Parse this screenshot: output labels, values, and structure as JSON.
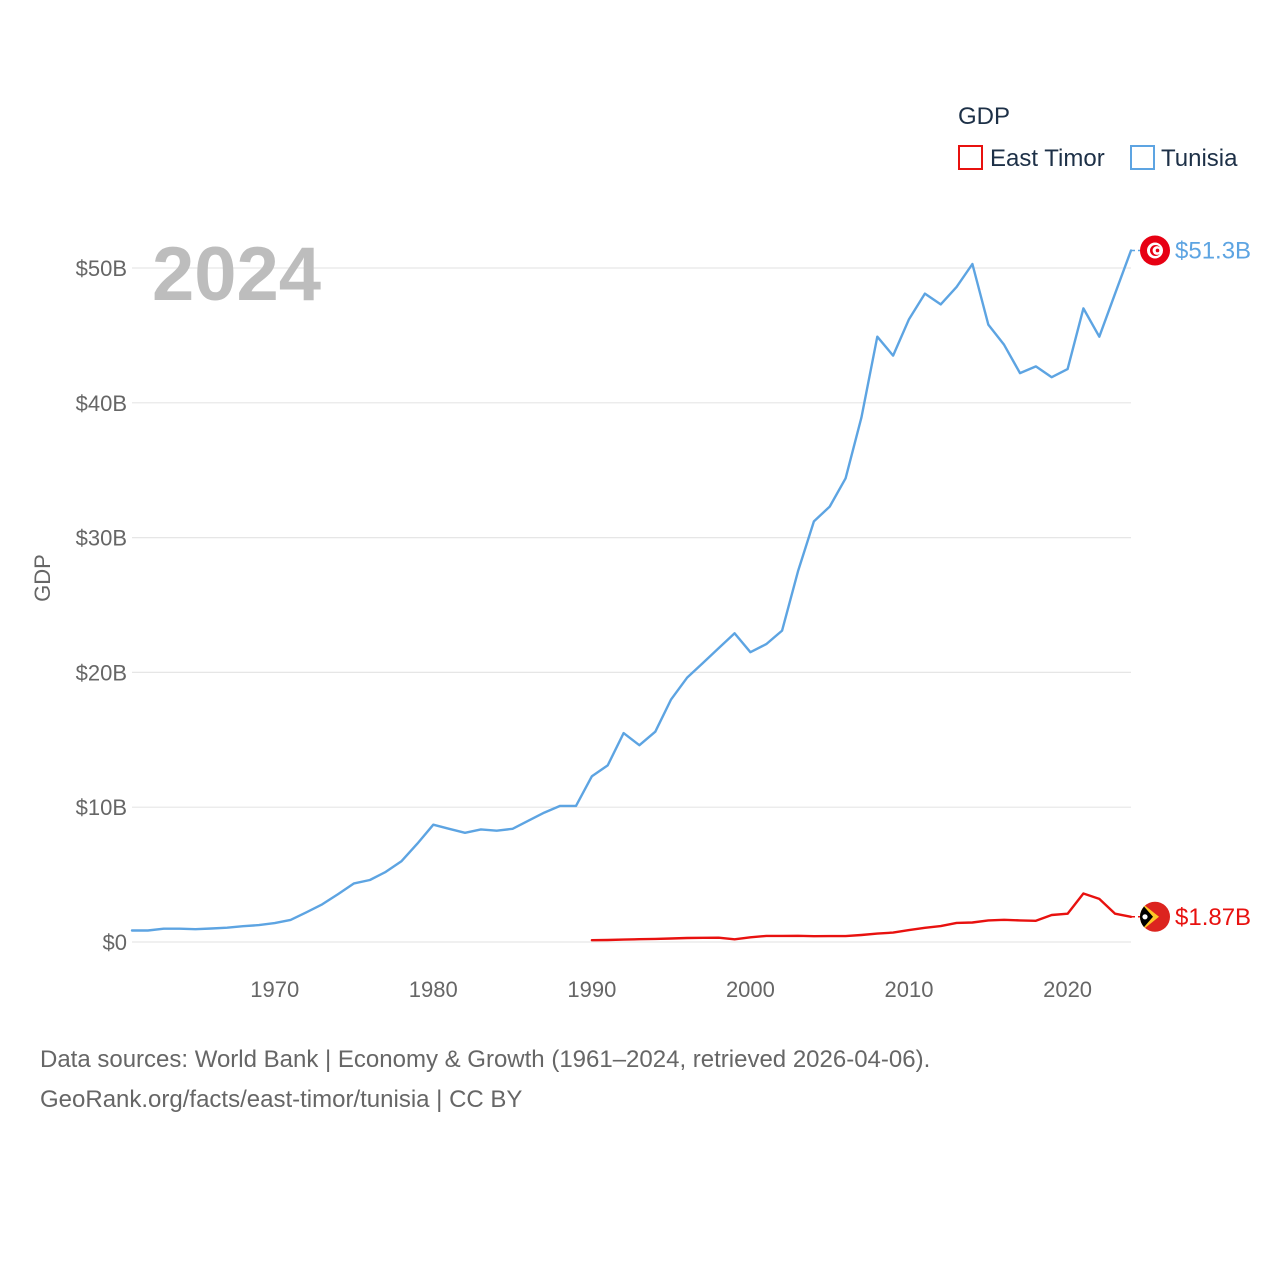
{
  "chart_data": {
    "type": "line",
    "title": "GDP",
    "ylabel": "GDP",
    "xlabel": "",
    "year_label": "2024",
    "xlim": [
      1961,
      2024
    ],
    "ylim": [
      0,
      50000000000
    ],
    "x_ticks": [
      1970,
      1980,
      1990,
      2000,
      2010,
      2020
    ],
    "x_tick_labels": [
      "1970",
      "1980",
      "1990",
      "2000",
      "2010",
      "2020"
    ],
    "y_ticks": [
      0,
      10000000000,
      20000000000,
      30000000000,
      40000000000,
      50000000000
    ],
    "y_tick_labels": [
      "$0",
      "$10B",
      "$20B",
      "$30B",
      "$40B",
      "$50B"
    ],
    "grid": true,
    "legend": {
      "title": "GDP",
      "position": "top-right",
      "entries": [
        "East Timor",
        "Tunisia"
      ]
    },
    "series": [
      {
        "name": "East Timor",
        "color": "#e8110f",
        "end_label": "$1.87B",
        "flag_icon": "east-timor-flag-icon",
        "x": [
          1990,
          1991,
          1992,
          1993,
          1994,
          1995,
          1996,
          1997,
          1998,
          1999,
          2000,
          2001,
          2002,
          2003,
          2004,
          2005,
          2006,
          2007,
          2008,
          2009,
          2010,
          2011,
          2012,
          2013,
          2014,
          2015,
          2016,
          2017,
          2018,
          2019,
          2020,
          2021,
          2022,
          2023,
          2024
        ],
        "values": [
          130000000.0,
          150000000.0,
          180000000.0,
          210000000.0,
          230000000.0,
          260000000.0,
          300000000.0,
          310000000.0,
          320000000.0,
          200000000.0,
          350000000.0,
          450000000.0,
          450000000.0,
          460000000.0,
          430000000.0,
          440000000.0,
          440000000.0,
          520000000.0,
          620000000.0,
          700000000.0,
          880000000.0,
          1050000000.0,
          1180000000.0,
          1420000000.0,
          1450000000.0,
          1600000000.0,
          1650000000.0,
          1600000000.0,
          1570000000.0,
          2000000000.0,
          2100000000.0,
          3600000000.0,
          3200000000.0,
          2100000000.0,
          1870000000.0
        ]
      },
      {
        "name": "Tunisia",
        "color": "#5da4e2",
        "end_label": "$51.3B",
        "flag_icon": "tunisia-flag-icon",
        "x": [
          1961,
          1962,
          1963,
          1964,
          1965,
          1966,
          1967,
          1968,
          1969,
          1970,
          1971,
          1972,
          1973,
          1974,
          1975,
          1976,
          1977,
          1978,
          1979,
          1980,
          1981,
          1982,
          1983,
          1984,
          1985,
          1986,
          1987,
          1988,
          1989,
          1990,
          1991,
          1992,
          1993,
          1994,
          1995,
          1996,
          1997,
          1998,
          1999,
          2000,
          2001,
          2002,
          2003,
          2004,
          2005,
          2006,
          2007,
          2008,
          2009,
          2010,
          2011,
          2012,
          2013,
          2014,
          2015,
          2016,
          2017,
          2018,
          2019,
          2020,
          2021,
          2022,
          2023,
          2024
        ],
        "values": [
          850000000.0,
          850000000.0,
          990000000.0,
          990000000.0,
          950000000.0,
          1000000000.0,
          1060000000.0,
          1170000000.0,
          1250000000.0,
          1400000000.0,
          1640000000.0,
          2200000000.0,
          2800000000.0,
          3550000000.0,
          4350000000.0,
          4600000000.0,
          5200000000.0,
          6000000000.0,
          7300000000.0,
          8700000000.0,
          8400000000.0,
          8100000000.0,
          8350000000.0,
          8260000000.0,
          8400000000.0,
          9000000000.0,
          9600000000.0,
          10100000000.0,
          10100000000.0,
          12300000000.0,
          13100000000.0,
          15500000000.0,
          14600000000.0,
          15600000000.0,
          18000000000.0,
          19600000000.0,
          20700000000.0,
          21800000000.0,
          22900000000.0,
          21500000000.0,
          22100000000.0,
          23100000000.0,
          27500000000.0,
          31200000000.0,
          32300000000.0,
          34400000000.0,
          38900000000.0,
          44900000000.0,
          43500000000.0,
          46200000000.0,
          48100000000.0,
          47300000000.0,
          48600000000.0,
          50300000000.0,
          45800000000.0,
          44300000000.0,
          42200000000.0,
          42700000000.0,
          41900000000.0,
          42500000000.0,
          47000000000.0,
          44900000000.0,
          48100000000.0,
          51300000000.0
        ]
      }
    ]
  },
  "footer": {
    "line1": "Data sources: World Bank | Economy & Growth (1961–2024, retrieved 2026-04-06).",
    "line2": "GeoRank.org/facts/east-timor/tunisia | CC BY"
  }
}
